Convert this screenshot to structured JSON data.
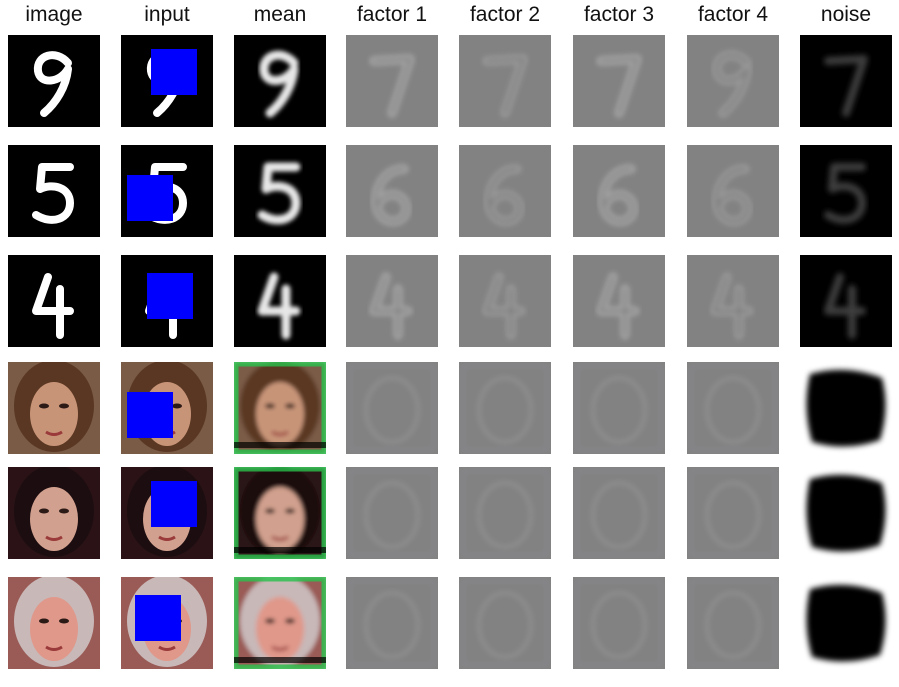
{
  "columns": [
    "image",
    "input",
    "mean",
    "factor 1",
    "factor 2",
    "factor 3",
    "factor 4",
    "noise"
  ],
  "rows": [
    {
      "kind": "digit",
      "label": "9",
      "lookalike": "7",
      "occluder": "top-right"
    },
    {
      "kind": "digit",
      "label": "5",
      "lookalike": "6",
      "occluder": "bottom-left"
    },
    {
      "kind": "digit",
      "label": "4",
      "lookalike": "4",
      "occluder": "center"
    },
    {
      "kind": "face",
      "hair": "#5a3722",
      "skin": "#c89478",
      "bg": "#7a5b46",
      "occluder": "bottom-left"
    },
    {
      "kind": "face",
      "hair": "#1c0d10",
      "skin": "#d2a08e",
      "bg": "#2a1216",
      "occluder": "top-right"
    },
    {
      "kind": "face",
      "hair": "#c8b8b8",
      "skin": "#e0988a",
      "bg": "#9a5a55",
      "occluder": "top-left"
    }
  ],
  "colors": {
    "occluder": "#0000ff",
    "digit_background": "#000000",
    "factor_background": "#828282",
    "noise_dark": "#000000",
    "noise_light": "#ffffff"
  }
}
